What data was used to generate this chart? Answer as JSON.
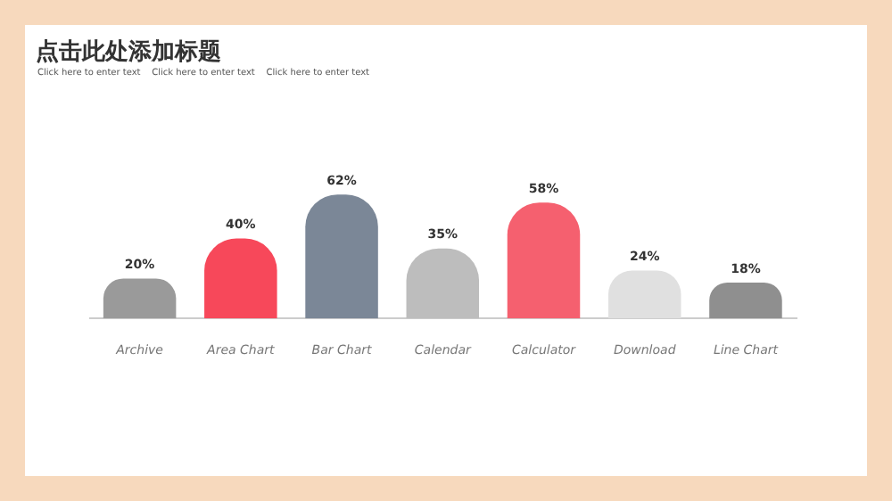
{
  "chart_data": {
    "type": "bar",
    "title": "点击此处添加标题",
    "subtitle": "Click here to enter text    Click here to enter text    Click here to enter text",
    "categories": [
      "Archive",
      "Area Chart",
      "Bar Chart",
      "Calendar",
      "Calculator",
      "Download",
      "Line Chart"
    ],
    "values": [
      20,
      40,
      62,
      35,
      58,
      24,
      18
    ],
    "colors": [
      "#9a9a9a",
      "#f7485a",
      "#7b8797",
      "#bdbdbd",
      "#f5606f",
      "#e0e0e0",
      "#8f8f8f"
    ],
    "value_labels": [
      "20%",
      "40%",
      "62%",
      "35%",
      "58%",
      "24%",
      "18%"
    ],
    "grid": false,
    "legend": false
  }
}
